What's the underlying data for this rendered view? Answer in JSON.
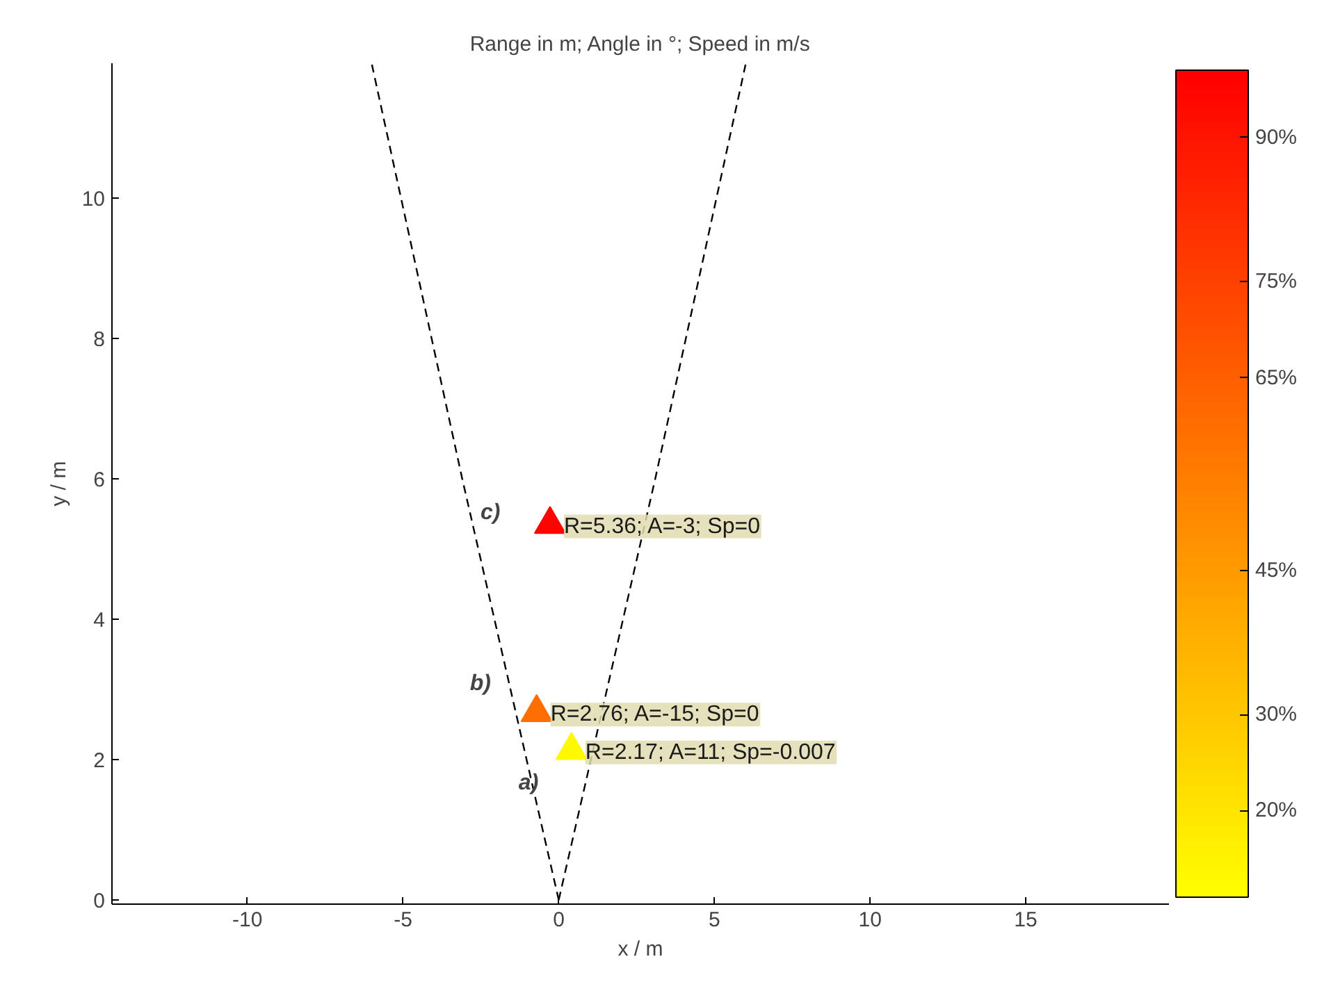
{
  "chart_data": {
    "type": "scatter",
    "title": "Range in m; Angle in °; Speed in m/s",
    "xlabel": "x / m",
    "ylabel": "y / m",
    "xlim": [
      -14.35,
      19.6
    ],
    "ylim": [
      -0.06,
      11.92
    ],
    "xticks": [
      -10,
      -5,
      0,
      5,
      10,
      15
    ],
    "yticks": [
      0,
      2,
      4,
      6,
      8,
      10
    ],
    "clim": [
      11,
      97
    ],
    "cticks": [
      {
        "value": 20,
        "label": "20%"
      },
      {
        "value": 30,
        "label": "30%"
      },
      {
        "value": 45,
        "label": "45%"
      },
      {
        "value": 65,
        "label": "65%"
      },
      {
        "value": 75,
        "label": "75%"
      },
      {
        "value": 90,
        "label": "90%"
      }
    ],
    "grid": false,
    "marker": "triangle",
    "series": [
      {
        "x": [
          0.41,
          -0.71,
          -0.28
        ],
        "values": [
          2.13,
          2.67,
          5.35
        ],
        "cvalues": [
          13,
          60,
          96
        ],
        "colors": [
          "#fff900",
          "#ff6e00",
          "#ff0300"
        ]
      },
      {
        "type": "line",
        "color": "#000000",
        "line_style": "dashed",
        "marker": "none",
        "x": [
          0,
          -3.1,
          -6.0
        ],
        "values": [
          0,
          6,
          11.9
        ]
      },
      {
        "type": "line",
        "color": "#000000",
        "line_style": "dashed",
        "marker": "none",
        "x": [
          0,
          3.1,
          6.0
        ],
        "values": [
          0,
          6,
          11.9
        ]
      }
    ],
    "annotations": [
      {
        "text": "R=2.17; A=11; Sp=-0.007",
        "x": 0.41,
        "y": 2.13
      },
      {
        "text": "R=2.76; A=-15; Sp=0",
        "x": -0.71,
        "y": 2.67
      },
      {
        "text": "R=5.36; A=-3; Sp=0",
        "x": -0.28,
        "y": 5.35
      },
      "a)",
      "b)",
      "c)"
    ]
  }
}
